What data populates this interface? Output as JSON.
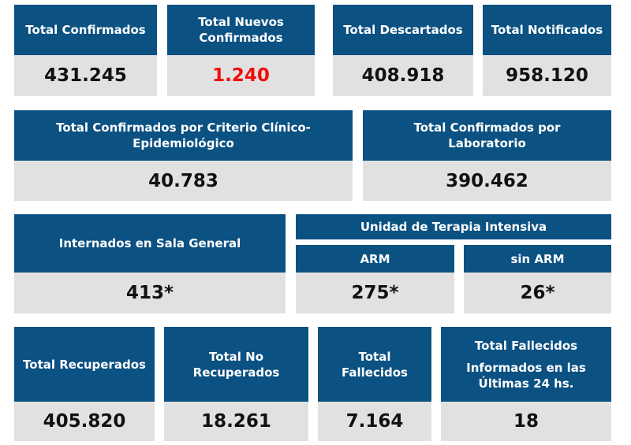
{
  "row1": [
    {
      "title": "Total Confirmados",
      "value": "431.245"
    },
    {
      "title": "Total Nuevos Confirmados",
      "value": "1.240"
    },
    {
      "title": "Total Descartados",
      "value": "408.918"
    },
    {
      "title": "Total Notificados",
      "value": "958.120"
    }
  ],
  "row2": [
    {
      "title": "Total Confirmados por Criterio Clínico-Epidemiológico",
      "value": "40.783"
    },
    {
      "title": "Total Confirmados por Laboratorio",
      "value": "390.462"
    }
  ],
  "row3": {
    "internados": {
      "title": "Internados en Sala General",
      "value": "413*"
    },
    "uti": {
      "title": "Unidad de Terapia Intensiva",
      "arm": {
        "title": "ARM",
        "value": "275*"
      },
      "sin_arm": {
        "title": "sin ARM",
        "value": "26*"
      }
    }
  },
  "row4": [
    {
      "title": "Total Recuperados",
      "value": "405.820"
    },
    {
      "title": "Total No Recuperados",
      "value": "18.261"
    },
    {
      "title": "Total Fallecidos",
      "value": "7.164"
    },
    {
      "title": "Total Fallecidos",
      "subtitle": "Informados en las Últimas 24 hs.",
      "value": "18"
    }
  ],
  "colors": {
    "header": "#0b5182",
    "value_bg": "#e1e1e1",
    "highlight": "#f20c0c"
  }
}
